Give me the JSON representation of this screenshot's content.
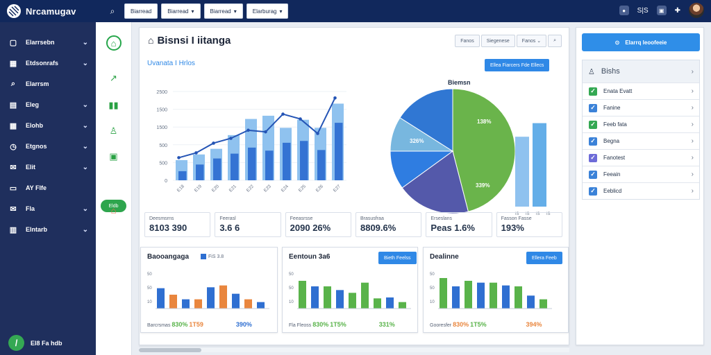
{
  "app": {
    "name": "Nrcamugav",
    "search_icon": "search-icon",
    "top_buttons": [
      "Biarread",
      "Biarread",
      "Biarread",
      "Elarburag"
    ],
    "top_right": [
      "badge-icon",
      "S|S",
      "inbox-icon",
      "share-icon"
    ]
  },
  "sidebar": {
    "items": [
      {
        "label": "Elarrsebn",
        "icon": "monitor-icon",
        "has_chevron": true
      },
      {
        "label": "Etdsonrafs",
        "icon": "building-icon",
        "has_chevron": true
      },
      {
        "label": "Elarrsm",
        "icon": "search-icon",
        "has_chevron": false
      },
      {
        "label": "Eleg",
        "icon": "table-icon",
        "has_chevron": true
      },
      {
        "label": "Elohb",
        "icon": "calendar-icon",
        "has_chevron": true
      },
      {
        "label": "Etgnos",
        "icon": "clock-icon",
        "has_chevron": true
      },
      {
        "label": "Elit",
        "icon": "inbox-icon",
        "has_chevron": true
      },
      {
        "label": "AY Flfe",
        "icon": "display-icon",
        "has_chevron": false
      },
      {
        "label": "Fla",
        "icon": "mail-icon",
        "has_chevron": true
      },
      {
        "label": "Elntarb",
        "icon": "grid-icon",
        "has_chevron": true
      }
    ],
    "footer_label": "El8 Fa hdb"
  },
  "rail": {
    "pill": "Eldb"
  },
  "main": {
    "title": "Bisnsi I iitanga",
    "controls": [
      "Fanos",
      "Siegenese",
      "Fanos"
    ],
    "chart_title": "Uvanata",
    "chart_subtitle": "I Hrlos",
    "chart_button": "Ellea Fiarcers Fde Ellecs",
    "pie_title": "Biemsn",
    "pie_labels": [
      "326%",
      "138%",
      "339%"
    ],
    "kpis": [
      {
        "label": "Deesmsrns",
        "value": "8103 390",
        "accent": "#2f9e44",
        "bg": "#eef3fb"
      },
      {
        "label": "Feerasl",
        "value": "3.6 6",
        "accent": "#e76f51",
        "bg": "#ffffff"
      },
      {
        "label": "Feeasrsse",
        "value": "2090 26%",
        "accent": "#e76f51",
        "bg": "#eef3fb"
      },
      {
        "label": "Brasusfraa",
        "value": "8809.6%",
        "accent": "#2f9e44",
        "bg": "#ffffff"
      },
      {
        "label": "Erseslans",
        "value": "Peas 1.6%",
        "accent": "#e76f51",
        "bg": "#fff4e5"
      },
      {
        "label": "Fasson Fasse",
        "value": "193%",
        "accent": "#2a73c5",
        "bg": "#f5fde8"
      }
    ]
  },
  "chart_data": [
    {
      "type": "bar",
      "categories": [
        "E18",
        "E19",
        "E20",
        "E21",
        "E22",
        "E23",
        "E24",
        "E25",
        "E26",
        "E27"
      ],
      "series": [
        {
          "values": [
            150,
            260,
            360,
            440,
            540,
            490,
            620,
            650,
            500,
            950
          ],
          "color": "#2f6fd1"
        },
        {
          "values": [
            250,
            320,
            390,
            560,
            760,
            800,
            650,
            750,
            650,
            950
          ],
          "color": "#8fc2ef"
        }
      ],
      "line_series": [
        280,
        340,
        460,
        520,
        620,
        600,
        820,
        760,
        580,
        1020
      ],
      "title": "Uvanata",
      "xlabel": "",
      "ylabel": "",
      "y_ticks": [
        "0",
        "500",
        "500",
        "1500",
        "1500",
        "2500"
      ]
    },
    {
      "type": "pie",
      "title": "Biemsn",
      "slices": [
        {
          "value": 46,
          "color": "#6ab44b"
        },
        {
          "value": 19,
          "color": "#5459aa"
        },
        {
          "value": 10,
          "color": "#2f7de1"
        },
        {
          "value": 9,
          "color": "#78b7df"
        },
        {
          "value": 16,
          "color": "#3077d3"
        }
      ],
      "side_bars": [
        0.72,
        0.86
      ]
    }
  ],
  "panels": [
    {
      "title": "Baooangaga",
      "legend": "FiS 3.8",
      "footer": "Barcrsmas",
      "footer_values": [
        "830%",
        "1T59",
        "390%"
      ],
      "bars": [
        22,
        15,
        10,
        10,
        23,
        25,
        16,
        10,
        7
      ],
      "colors": [
        "#2f6fd1",
        "#e9863e",
        "#2f6fd1",
        "#e9863e",
        "#2f6fd1",
        "#e9863e",
        "#2f6fd1",
        "#e9863e",
        "#2f6fd1"
      ]
    },
    {
      "title": "Eentoun 3a6",
      "legend": "Bieth Feelss",
      "footer": "Fla Fleoss",
      "footer_values": [
        "830%",
        "1T5%",
        "331%"
      ],
      "bars": [
        30,
        24,
        24,
        20,
        17,
        28,
        11,
        12,
        7
      ],
      "colors": [
        "#59b34a",
        "#2f6fd1",
        "#59b34a",
        "#2f6fd1",
        "#59b34a",
        "#59b34a",
        "#59b34a",
        "#2f6fd1",
        "#59b34a"
      ]
    },
    {
      "title": "Dealinne",
      "legend": "Ellera Feeb",
      "footer": "Gooresfer",
      "footer_values": [
        "830%",
        "1T5%",
        "394%"
      ],
      "bars": [
        33,
        24,
        30,
        28,
        28,
        25,
        24,
        14,
        10
      ],
      "colors": [
        "#59b34a",
        "#2f6fd1",
        "#59b34a",
        "#2f6fd1",
        "#59b34a",
        "#2f6fd1",
        "#59b34a",
        "#2f6fd1",
        "#59b34a"
      ]
    }
  ],
  "right": {
    "button": "Elarrq leoofeeie",
    "header": "Bishs",
    "items": [
      {
        "label": "Enata Evatt",
        "color": "#34a853"
      },
      {
        "label": "Fanine",
        "color": "#3b82d8"
      },
      {
        "label": "Feeb fata",
        "color": "#34a853"
      },
      {
        "label": "Begna",
        "color": "#3b82d8"
      },
      {
        "label": "Fanotest",
        "color": "#6d6bd8"
      },
      {
        "label": "Feeain",
        "color": "#3b82d8"
      },
      {
        "label": "Eeblicd",
        "color": "#3b82d8"
      }
    ]
  }
}
